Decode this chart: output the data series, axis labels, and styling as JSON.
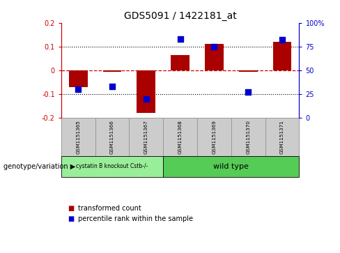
{
  "title": "GDS5091 / 1422181_at",
  "samples": [
    "GSM1151365",
    "GSM1151366",
    "GSM1151367",
    "GSM1151368",
    "GSM1151369",
    "GSM1151370",
    "GSM1151371"
  ],
  "red_bars": [
    -0.072,
    -0.005,
    -0.18,
    0.065,
    0.11,
    -0.005,
    0.12
  ],
  "blue_dots_pct": [
    30,
    33,
    20,
    83,
    75,
    27,
    82
  ],
  "ylim": [
    -0.2,
    0.2
  ],
  "yticks_left": [
    -0.2,
    -0.1,
    0.0,
    0.1,
    0.2
  ],
  "yticks_right": [
    0,
    25,
    50,
    75,
    100
  ],
  "ytick_labels_left": [
    "-0.2",
    "-0.1",
    "0",
    "0.1",
    "0.2"
  ],
  "ytick_labels_right": [
    "0",
    "25",
    "50",
    "75",
    "100%"
  ],
  "left_axis_color": "#cc0000",
  "right_axis_color": "#0000cc",
  "bar_color": "#aa0000",
  "dot_color": "#0000cc",
  "hline_color": "#cc0000",
  "dotted_line_color": "#000000",
  "group1_label": "cystatin B knockout Cstb-/-",
  "group2_label": "wild type",
  "group1_color": "#99ee99",
  "group2_color": "#55cc55",
  "group1_indices": [
    0,
    1,
    2
  ],
  "group2_indices": [
    3,
    4,
    5,
    6
  ],
  "genotype_label": "genotype/variation",
  "legend1": "transformed count",
  "legend2": "percentile rank within the sample",
  "bar_width": 0.55,
  "background_color": "#ffffff",
  "plot_bg": "#ffffff",
  "tick_box_color": "#cccccc",
  "tick_box_border": "#999999"
}
